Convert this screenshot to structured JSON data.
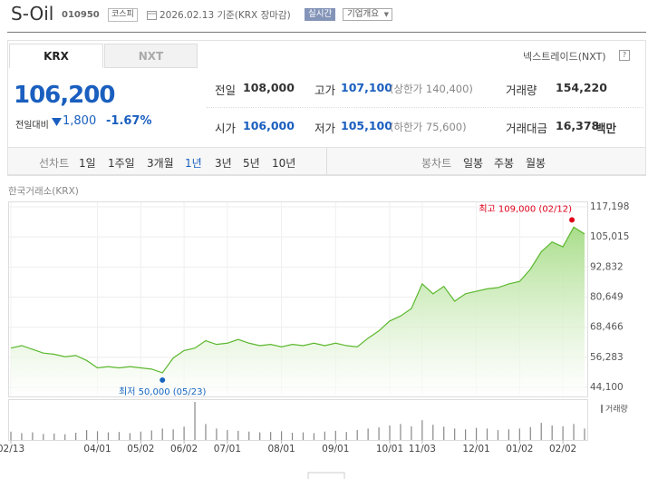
{
  "header": {
    "name": "S-Oil",
    "code": "010950",
    "market": "코스피",
    "date": "2026.02.13 기준(KRX 장마감)",
    "badge": "실시간",
    "button": "기업개요"
  },
  "tabs": {
    "items": [
      "KRX",
      "NXT"
    ],
    "link": "넥스트레이드(NXT)",
    "help": "?"
  },
  "quote": {
    "price": "106,200",
    "change_label": "전일대비",
    "change": "1,800",
    "rate": "-1.67%"
  },
  "stats": [
    [
      {
        "label": "전일",
        "value": "108,000"
      },
      {
        "label": "고가",
        "value": "107,100",
        "note": "(상한가 140,400)"
      },
      {
        "label": "거래량",
        "value": "154,220"
      }
    ],
    [
      {
        "label": "시가",
        "value": "106,000"
      },
      {
        "label": "저가",
        "value": "105,100",
        "note": "(하한가 75,600)"
      },
      {
        "label": "거래대금",
        "value": "16,378",
        "unit": "백만"
      }
    ]
  ],
  "periods": {
    "line_label": "선차트",
    "line_items": [
      "1일",
      "1주일",
      "3개월",
      "1년",
      "3년",
      "5년",
      "10년"
    ],
    "candle_label": "봉차트",
    "candle_items": [
      "일봉",
      "주봉",
      "월봉"
    ]
  },
  "chart_data": {
    "type": "line",
    "source": "한국거래소(KRX)",
    "color": "#5cb82e",
    "grid": true,
    "categories": [
      "02/13",
      null,
      null,
      null,
      null,
      null,
      null,
      null,
      "04/01",
      null,
      null,
      null,
      "05/02",
      null,
      null,
      null,
      "06/02",
      null,
      null,
      null,
      "07/01",
      null,
      null,
      null,
      null,
      "08/01",
      null,
      null,
      null,
      null,
      "09/01",
      null,
      null,
      null,
      null,
      "10/01",
      null,
      null,
      "11/03",
      null,
      null,
      null,
      null,
      "12/01",
      null,
      null,
      null,
      "01/02",
      null,
      null,
      null,
      "02/02",
      null,
      null
    ],
    "values": [
      60000,
      61000,
      59500,
      58000,
      57500,
      56500,
      57000,
      55000,
      52000,
      52500,
      52000,
      52500,
      52000,
      51500,
      50000,
      56000,
      59000,
      60000,
      63000,
      61500,
      62000,
      63500,
      62000,
      61000,
      61500,
      60500,
      61500,
      61000,
      62000,
      61000,
      62000,
      61000,
      60500,
      64000,
      67000,
      71000,
      73000,
      76000,
      86000,
      82000,
      85000,
      79000,
      82000,
      83000,
      84000,
      84500,
      86000,
      87000,
      92000,
      99000,
      103000,
      101000,
      109000,
      106200
    ],
    "ylim": [
      44100,
      117198
    ],
    "yticks": [
      {
        "value": 44100,
        "label": "44,100"
      },
      {
        "value": 56283,
        "label": "56,283"
      },
      {
        "value": 68466,
        "label": "68,466"
      },
      {
        "value": 80649,
        "label": "80,649"
      },
      {
        "value": 92832,
        "label": "92,832"
      },
      {
        "value": 105015,
        "label": "105,015"
      },
      {
        "value": 117198,
        "label": "117,198"
      }
    ],
    "annotations": [
      {
        "text": "최고 109,000 (02/12)",
        "value": 109000,
        "color": "#e0001b"
      },
      {
        "text": "최저 50,000 (05/23)",
        "value": 50000,
        "color": "#1565c0"
      }
    ],
    "volume": {
      "name": "거래량",
      "color": "#888888",
      "ylim": [
        0,
        1000
      ],
      "values": [
        220,
        180,
        200,
        160,
        170,
        150,
        190,
        260,
        230,
        200,
        210,
        180,
        220,
        250,
        300,
        280,
        350,
        1000,
        420,
        300,
        260,
        240,
        220,
        200,
        210,
        230,
        190,
        200,
        180,
        220,
        240,
        210,
        260,
        300,
        330,
        380,
        420,
        360,
        520,
        400,
        350,
        300,
        280,
        320,
        300,
        260,
        280,
        300,
        340,
        450,
        380,
        360,
        420,
        300
      ]
    }
  }
}
